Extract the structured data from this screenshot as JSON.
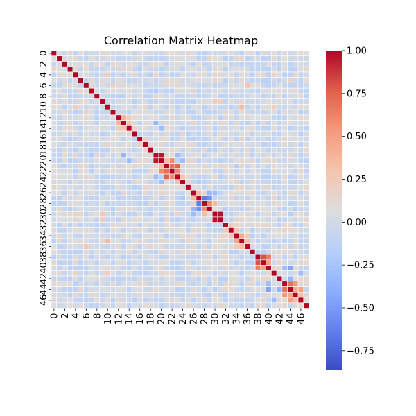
{
  "chart_data": {
    "type": "heatmap",
    "title": "Correlation Matrix Heatmap",
    "size": 48,
    "x_tick_labels": [
      "0",
      "2",
      "4",
      "6",
      "8",
      "10",
      "12",
      "14",
      "16",
      "18",
      "20",
      "22",
      "24",
      "26",
      "28",
      "30",
      "32",
      "34",
      "36",
      "38",
      "40",
      "42",
      "44",
      "46"
    ],
    "y_tick_labels": [
      "0",
      "2",
      "4",
      "6",
      "8",
      "10",
      "12",
      "14",
      "16",
      "18",
      "20",
      "22",
      "24",
      "26",
      "28",
      "30",
      "32",
      "34",
      "36",
      "38",
      "40",
      "42",
      "44",
      "46"
    ],
    "colorbar": {
      "ticks": [
        "1.00",
        "0.75",
        "0.50",
        "0.25",
        "0.00",
        "−0.25",
        "−0.50",
        "−0.75"
      ],
      "tick_values": [
        1.0,
        0.75,
        0.5,
        0.25,
        0.0,
        -0.25,
        -0.5,
        -0.75
      ],
      "vmin": -0.86,
      "vmax": 1.0,
      "colormap": "coolwarm"
    },
    "diagonal_value": 1.0,
    "notable_cells": [
      {
        "row": 20,
        "col": 19,
        "value": 0.95
      },
      {
        "row": 22,
        "col": 21,
        "value": 0.7
      },
      {
        "row": 22,
        "col": 20,
        "value": 0.6
      },
      {
        "row": 23,
        "col": 21,
        "value": 0.75
      },
      {
        "row": 23,
        "col": 22,
        "value": 0.6
      },
      {
        "row": 21,
        "col": 20,
        "value": 0.35
      },
      {
        "row": 31,
        "col": 30,
        "value": 0.97
      },
      {
        "row": 28,
        "col": 27,
        "value": -0.65
      },
      {
        "row": 29,
        "col": 27,
        "value": -0.55
      },
      {
        "row": 29,
        "col": 28,
        "value": 0.6
      },
      {
        "row": 30,
        "col": 28,
        "value": 0.35
      },
      {
        "row": 29,
        "col": 26,
        "value": -0.35
      },
      {
        "row": 30,
        "col": 26,
        "value": -0.3
      },
      {
        "row": 39,
        "col": 38,
        "value": 0.8
      },
      {
        "row": 40,
        "col": 38,
        "value": 0.65
      },
      {
        "row": 40,
        "col": 39,
        "value": 0.5
      },
      {
        "row": 44,
        "col": 43,
        "value": 0.7
      },
      {
        "row": 45,
        "col": 43,
        "value": 0.55
      },
      {
        "row": 45,
        "col": 44,
        "value": 0.45
      },
      {
        "row": 46,
        "col": 44,
        "value": 0.5
      },
      {
        "row": 46,
        "col": 45,
        "value": 0.35
      },
      {
        "row": 44,
        "col": 40,
        "value": -0.45
      },
      {
        "row": 44,
        "col": 42,
        "value": -0.35
      },
      {
        "row": 43,
        "col": 40,
        "value": -0.3
      },
      {
        "row": 46,
        "col": 41,
        "value": -0.3
      },
      {
        "row": 35,
        "col": 34,
        "value": 0.45
      },
      {
        "row": 36,
        "col": 35,
        "value": 0.35
      },
      {
        "row": 36,
        "col": 34,
        "value": 0.25
      },
      {
        "row": 13,
        "col": 12,
        "value": 0.4
      },
      {
        "row": 14,
        "col": 13,
        "value": 0.3
      },
      {
        "row": 14,
        "col": 12,
        "value": 0.25
      },
      {
        "row": 24,
        "col": 23,
        "value": 0.3
      },
      {
        "row": 27,
        "col": 26,
        "value": 0.35
      },
      {
        "row": 17,
        "col": 16,
        "value": 0.2
      },
      {
        "row": 33,
        "col": 32,
        "value": 0.25
      },
      {
        "row": 34,
        "col": 33,
        "value": 0.3
      },
      {
        "row": 19,
        "col": 13,
        "value": -0.35
      },
      {
        "row": 20,
        "col": 14,
        "value": -0.3
      },
      {
        "row": 23,
        "col": 19,
        "value": -0.3
      },
      {
        "row": 24,
        "col": 20,
        "value": -0.3
      },
      {
        "row": 10,
        "col": 4,
        "value": 0.2
      },
      {
        "row": 11,
        "col": 6,
        "value": 0.2
      },
      {
        "row": 30,
        "col": 9,
        "value": 0.25
      },
      {
        "row": 31,
        "col": 9,
        "value": 0.2
      },
      {
        "row": 35,
        "col": 10,
        "value": 0.35
      },
      {
        "row": 36,
        "col": 6,
        "value": 0.3
      },
      {
        "row": 41,
        "col": 10,
        "value": 0.2
      },
      {
        "row": 19,
        "col": 7,
        "value": -0.2
      },
      {
        "row": 24,
        "col": 27,
        "value": -0.2
      }
    ],
    "background_range": [
      -0.15,
      0.15
    ],
    "xlabel": "",
    "ylabel": ""
  }
}
